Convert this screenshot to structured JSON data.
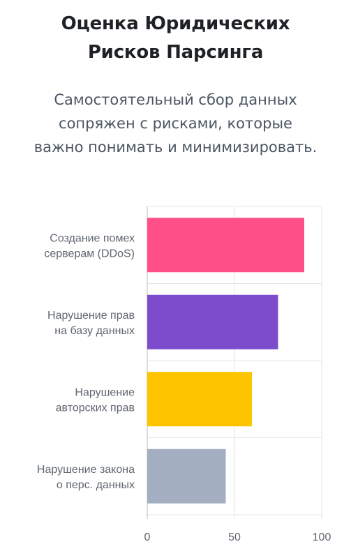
{
  "header": {
    "title_lines": [
      "Оценка Юридических",
      "Рисков Парсинга"
    ],
    "subtitle_lines": [
      "Самостоятельный сбор данных",
      "сопряжен с рисками, которые",
      "важно понимать и минимизировать."
    ]
  },
  "chart_data": {
    "type": "bar",
    "orientation": "horizontal",
    "categories": [
      [
        "Создание помех",
        "серверам (DDoS)"
      ],
      [
        "Нарушение прав",
        "на базу данных"
      ],
      [
        "Нарушение",
        "авторских прав"
      ],
      [
        "Нарушение закона",
        "о перс. данных"
      ]
    ],
    "values": [
      90,
      75,
      60,
      45
    ],
    "colors": [
      "#ff4f87",
      "#7d4ccc",
      "#ffc400",
      "#a3afc1"
    ],
    "xlim": [
      0,
      100
    ],
    "xticks": [
      0,
      50,
      100
    ],
    "grid": true,
    "title": "",
    "xlabel": "",
    "ylabel": ""
  }
}
